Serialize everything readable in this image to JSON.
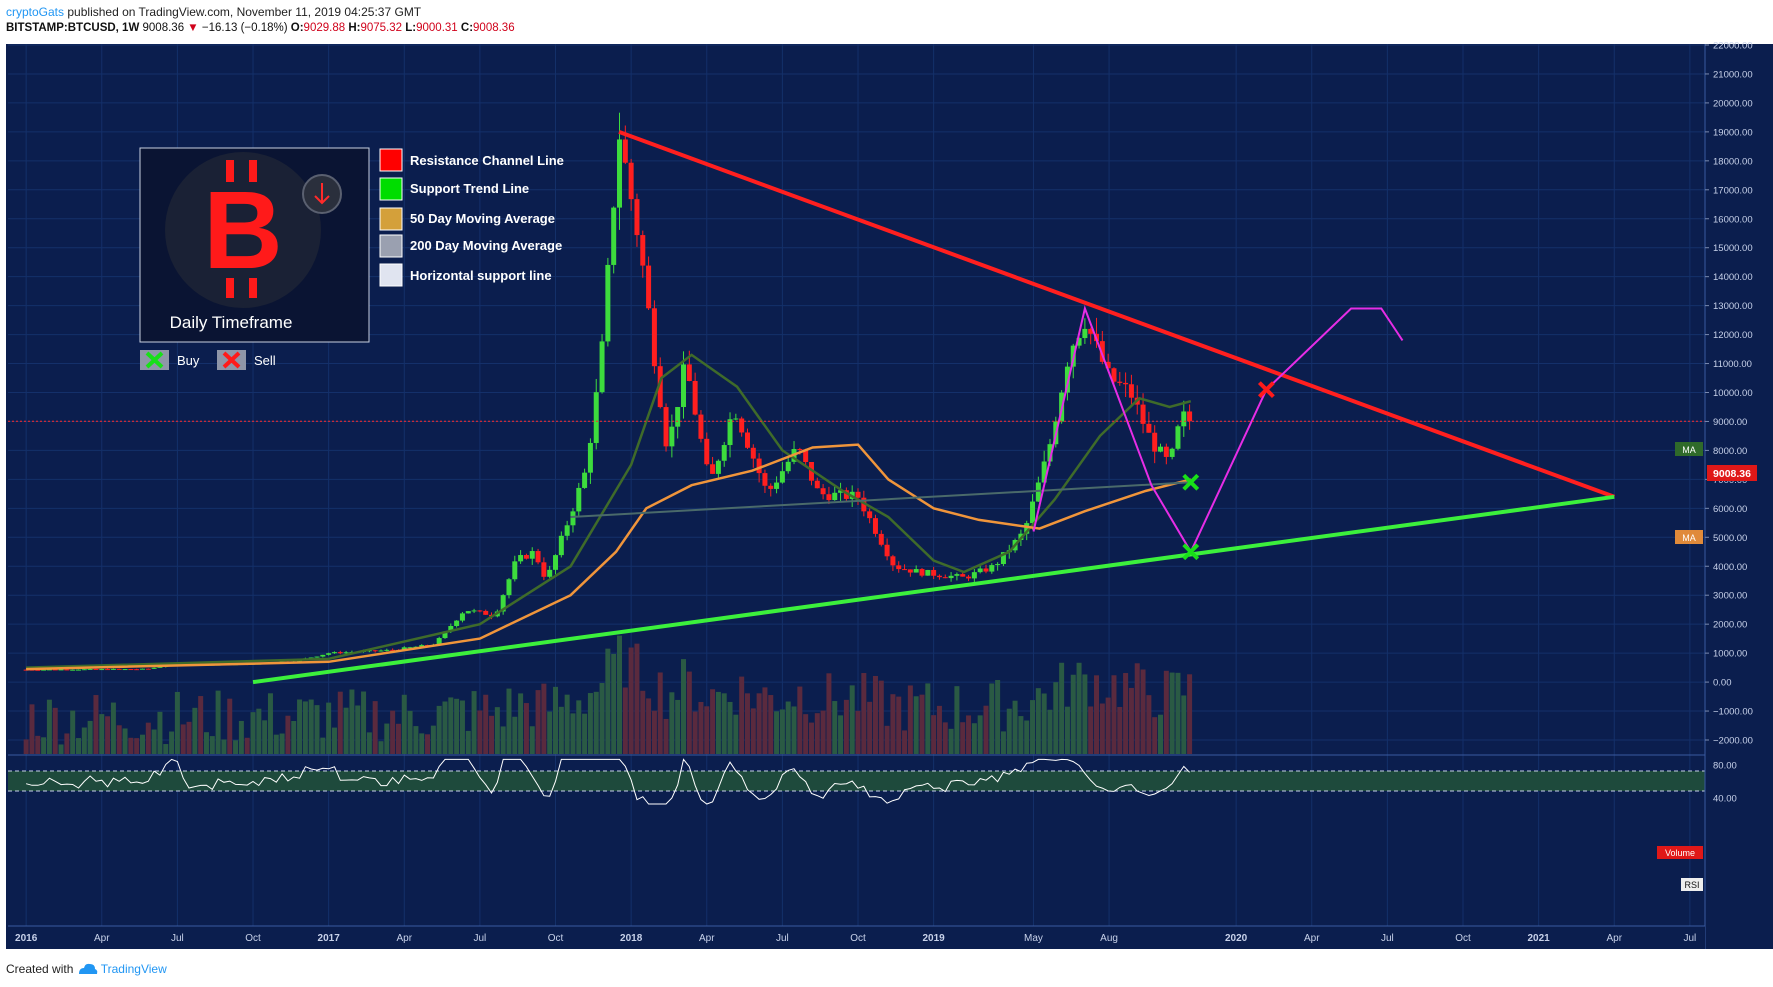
{
  "header": {
    "author": "cryptoGats",
    "published": "published on TradingView.com, November 11, 2019 04:25:37 GMT",
    "symbol": "BITSTAMP:BTCUSD, 1W",
    "last": "9008.36",
    "down_arrow": "▼",
    "change": "−16.13 (−0.18%)",
    "o_label": "O:",
    "o_val": "9029.88",
    "h_label": "H:",
    "h_val": "9075.32",
    "l_label": "L:",
    "l_val": "9000.31",
    "c_label": "C:",
    "c_val": "9008.36"
  },
  "legend": {
    "title": "Daily Timeframe",
    "items": [
      {
        "label": "Resistance Channel Line",
        "color": "#ff0000"
      },
      {
        "label": "Support Trend Line",
        "color": "#00dd00"
      },
      {
        "label": "50 Day Moving Average",
        "color": "#d4a03a"
      },
      {
        "label": "200 Day Moving Average",
        "color": "#9aa0b0"
      },
      {
        "label": "Horizontal support line",
        "color": "#e0e4f0"
      }
    ],
    "buy": "Buy",
    "sell": "Sell"
  },
  "price_tag": "9008.36",
  "ma_tag": "MA",
  "volume_tag": "Volume",
  "rsi_tag": "RSI",
  "footer": {
    "created": "Created with",
    "brand": "TradingView"
  },
  "colors": {
    "background": "#0b1e4e",
    "bull": "#3ddc3d",
    "bear": "#ff1f1f",
    "ma_green": "#3f6b2a",
    "ma_orange": "#f0953b",
    "resistance": "#ff1f1f",
    "support": "#3cf03c",
    "projection": "#e62de6"
  },
  "chart_data": {
    "type": "candlestick",
    "y_ticks": [
      "22000.00",
      "21000.00",
      "20000.00",
      "19000.00",
      "18000.00",
      "17000.00",
      "16000.00",
      "15000.00",
      "14000.00",
      "13000.00",
      "12000.00",
      "11000.00",
      "10000.00",
      "9000.00",
      "8000.00",
      "7000.00",
      "6000.00",
      "5000.00",
      "4000.00",
      "3000.00",
      "2000.00",
      "1000.00",
      "0.00",
      "−1000.00",
      "−2000.00"
    ],
    "rsi_ticks": [
      "80.00",
      "40.00"
    ],
    "x_ticks": [
      {
        "label": "2016",
        "t": 2016.0,
        "bold": true
      },
      {
        "label": "Apr",
        "t": 2016.25
      },
      {
        "label": "Jul",
        "t": 2016.5
      },
      {
        "label": "Oct",
        "t": 2016.75
      },
      {
        "label": "2017",
        "t": 2017.0,
        "bold": true
      },
      {
        "label": "Apr",
        "t": 2017.25
      },
      {
        "label": "Jul",
        "t": 2017.5
      },
      {
        "label": "Oct",
        "t": 2017.75
      },
      {
        "label": "2018",
        "t": 2018.0,
        "bold": true
      },
      {
        "label": "Apr",
        "t": 2018.25
      },
      {
        "label": "Jul",
        "t": 2018.5
      },
      {
        "label": "Oct",
        "t": 2018.75
      },
      {
        "label": "2019",
        "t": 2019.0,
        "bold": true
      },
      {
        "label": "May",
        "t": 2019.33
      },
      {
        "label": "Aug",
        "t": 2019.58
      },
      {
        "label": "2020",
        "t": 2020.0,
        "bold": true
      },
      {
        "label": "Apr",
        "t": 2020.25
      },
      {
        "label": "Jul",
        "t": 2020.5
      },
      {
        "label": "Oct",
        "t": 2020.75
      },
      {
        "label": "2021",
        "t": 2021.0,
        "bold": true
      },
      {
        "label": "Apr",
        "t": 2021.25
      },
      {
        "label": "Jul",
        "t": 2021.5
      }
    ],
    "price_keypoints": [
      [
        2016.0,
        430
      ],
      [
        2016.4,
        450
      ],
      [
        2016.5,
        650
      ],
      [
        2016.6,
        600
      ],
      [
        2016.75,
        620
      ],
      [
        2016.9,
        750
      ],
      [
        2017.0,
        1000
      ],
      [
        2017.2,
        1100
      ],
      [
        2017.35,
        1300
      ],
      [
        2017.45,
        2500
      ],
      [
        2017.55,
        2300
      ],
      [
        2017.62,
        4200
      ],
      [
        2017.68,
        4500
      ],
      [
        2017.72,
        3500
      ],
      [
        2017.8,
        5800
      ],
      [
        2017.85,
        7300
      ],
      [
        2017.9,
        11000
      ],
      [
        2017.96,
        19000
      ],
      [
        2018.03,
        15000
      ],
      [
        2018.08,
        11000
      ],
      [
        2018.12,
        8000
      ],
      [
        2018.18,
        11000
      ],
      [
        2018.26,
        6800
      ],
      [
        2018.34,
        9500
      ],
      [
        2018.45,
        6500
      ],
      [
        2018.55,
        8100
      ],
      [
        2018.62,
        6500
      ],
      [
        2018.75,
        6400
      ],
      [
        2018.87,
        4000
      ],
      [
        2018.95,
        3800
      ],
      [
        2019.1,
        3600
      ],
      [
        2019.2,
        4000
      ],
      [
        2019.3,
        5200
      ],
      [
        2019.38,
        8000
      ],
      [
        2019.45,
        11500
      ],
      [
        2019.5,
        12500
      ],
      [
        2019.58,
        10500
      ],
      [
        2019.65,
        10000
      ],
      [
        2019.72,
        8300
      ],
      [
        2019.78,
        7500
      ],
      [
        2019.82,
        9200
      ],
      [
        2019.85,
        9008
      ]
    ],
    "ma_green_points": [
      [
        2016.0,
        500
      ],
      [
        2017.0,
        800
      ],
      [
        2017.5,
        2000
      ],
      [
        2017.8,
        4000
      ],
      [
        2018.0,
        7500
      ],
      [
        2018.1,
        10500
      ],
      [
        2018.2,
        11300
      ],
      [
        2018.35,
        10200
      ],
      [
        2018.5,
        8000
      ],
      [
        2018.7,
        6600
      ],
      [
        2018.85,
        5700
      ],
      [
        2019.0,
        4200
      ],
      [
        2019.1,
        3800
      ],
      [
        2019.25,
        4500
      ],
      [
        2019.4,
        6300
      ],
      [
        2019.55,
        8500
      ],
      [
        2019.68,
        9800
      ],
      [
        2019.78,
        9500
      ],
      [
        2019.85,
        9700
      ]
    ],
    "ma_orange_points": [
      [
        2016.0,
        450
      ],
      [
        2017.0,
        700
      ],
      [
        2017.5,
        1500
      ],
      [
        2017.8,
        3000
      ],
      [
        2017.95,
        4500
      ],
      [
        2018.05,
        6000
      ],
      [
        2018.2,
        6800
      ],
      [
        2018.4,
        7300
      ],
      [
        2018.6,
        8100
      ],
      [
        2018.75,
        8200
      ],
      [
        2018.85,
        7000
      ],
      [
        2019.0,
        6000
      ],
      [
        2019.15,
        5600
      ],
      [
        2019.35,
        5300
      ],
      [
        2019.5,
        5900
      ],
      [
        2019.7,
        6600
      ],
      [
        2019.85,
        7000
      ]
    ],
    "resistance_line": [
      [
        2017.96,
        19000
      ],
      [
        2021.25,
        6400
      ]
    ],
    "support_line": [
      [
        2016.75,
        0
      ],
      [
        2021.25,
        6400
      ]
    ],
    "horizontal_support": [
      [
        2017.8,
        5700
      ],
      [
        2019.85,
        6900
      ]
    ],
    "projection": [
      [
        2019.33,
        5200
      ],
      [
        2019.5,
        12900
      ],
      [
        2019.72,
        6800
      ],
      [
        2019.85,
        4500
      ],
      [
        2020.1,
        10100
      ],
      [
        2020.38,
        12900
      ],
      [
        2020.48,
        12900
      ],
      [
        2020.55,
        11800
      ]
    ],
    "buy_markers": [
      [
        2019.85,
        4500
      ],
      [
        2019.85,
        6900
      ]
    ],
    "sell_markers": [
      [
        2020.1,
        10100
      ]
    ],
    "last_price": 9008.36
  }
}
